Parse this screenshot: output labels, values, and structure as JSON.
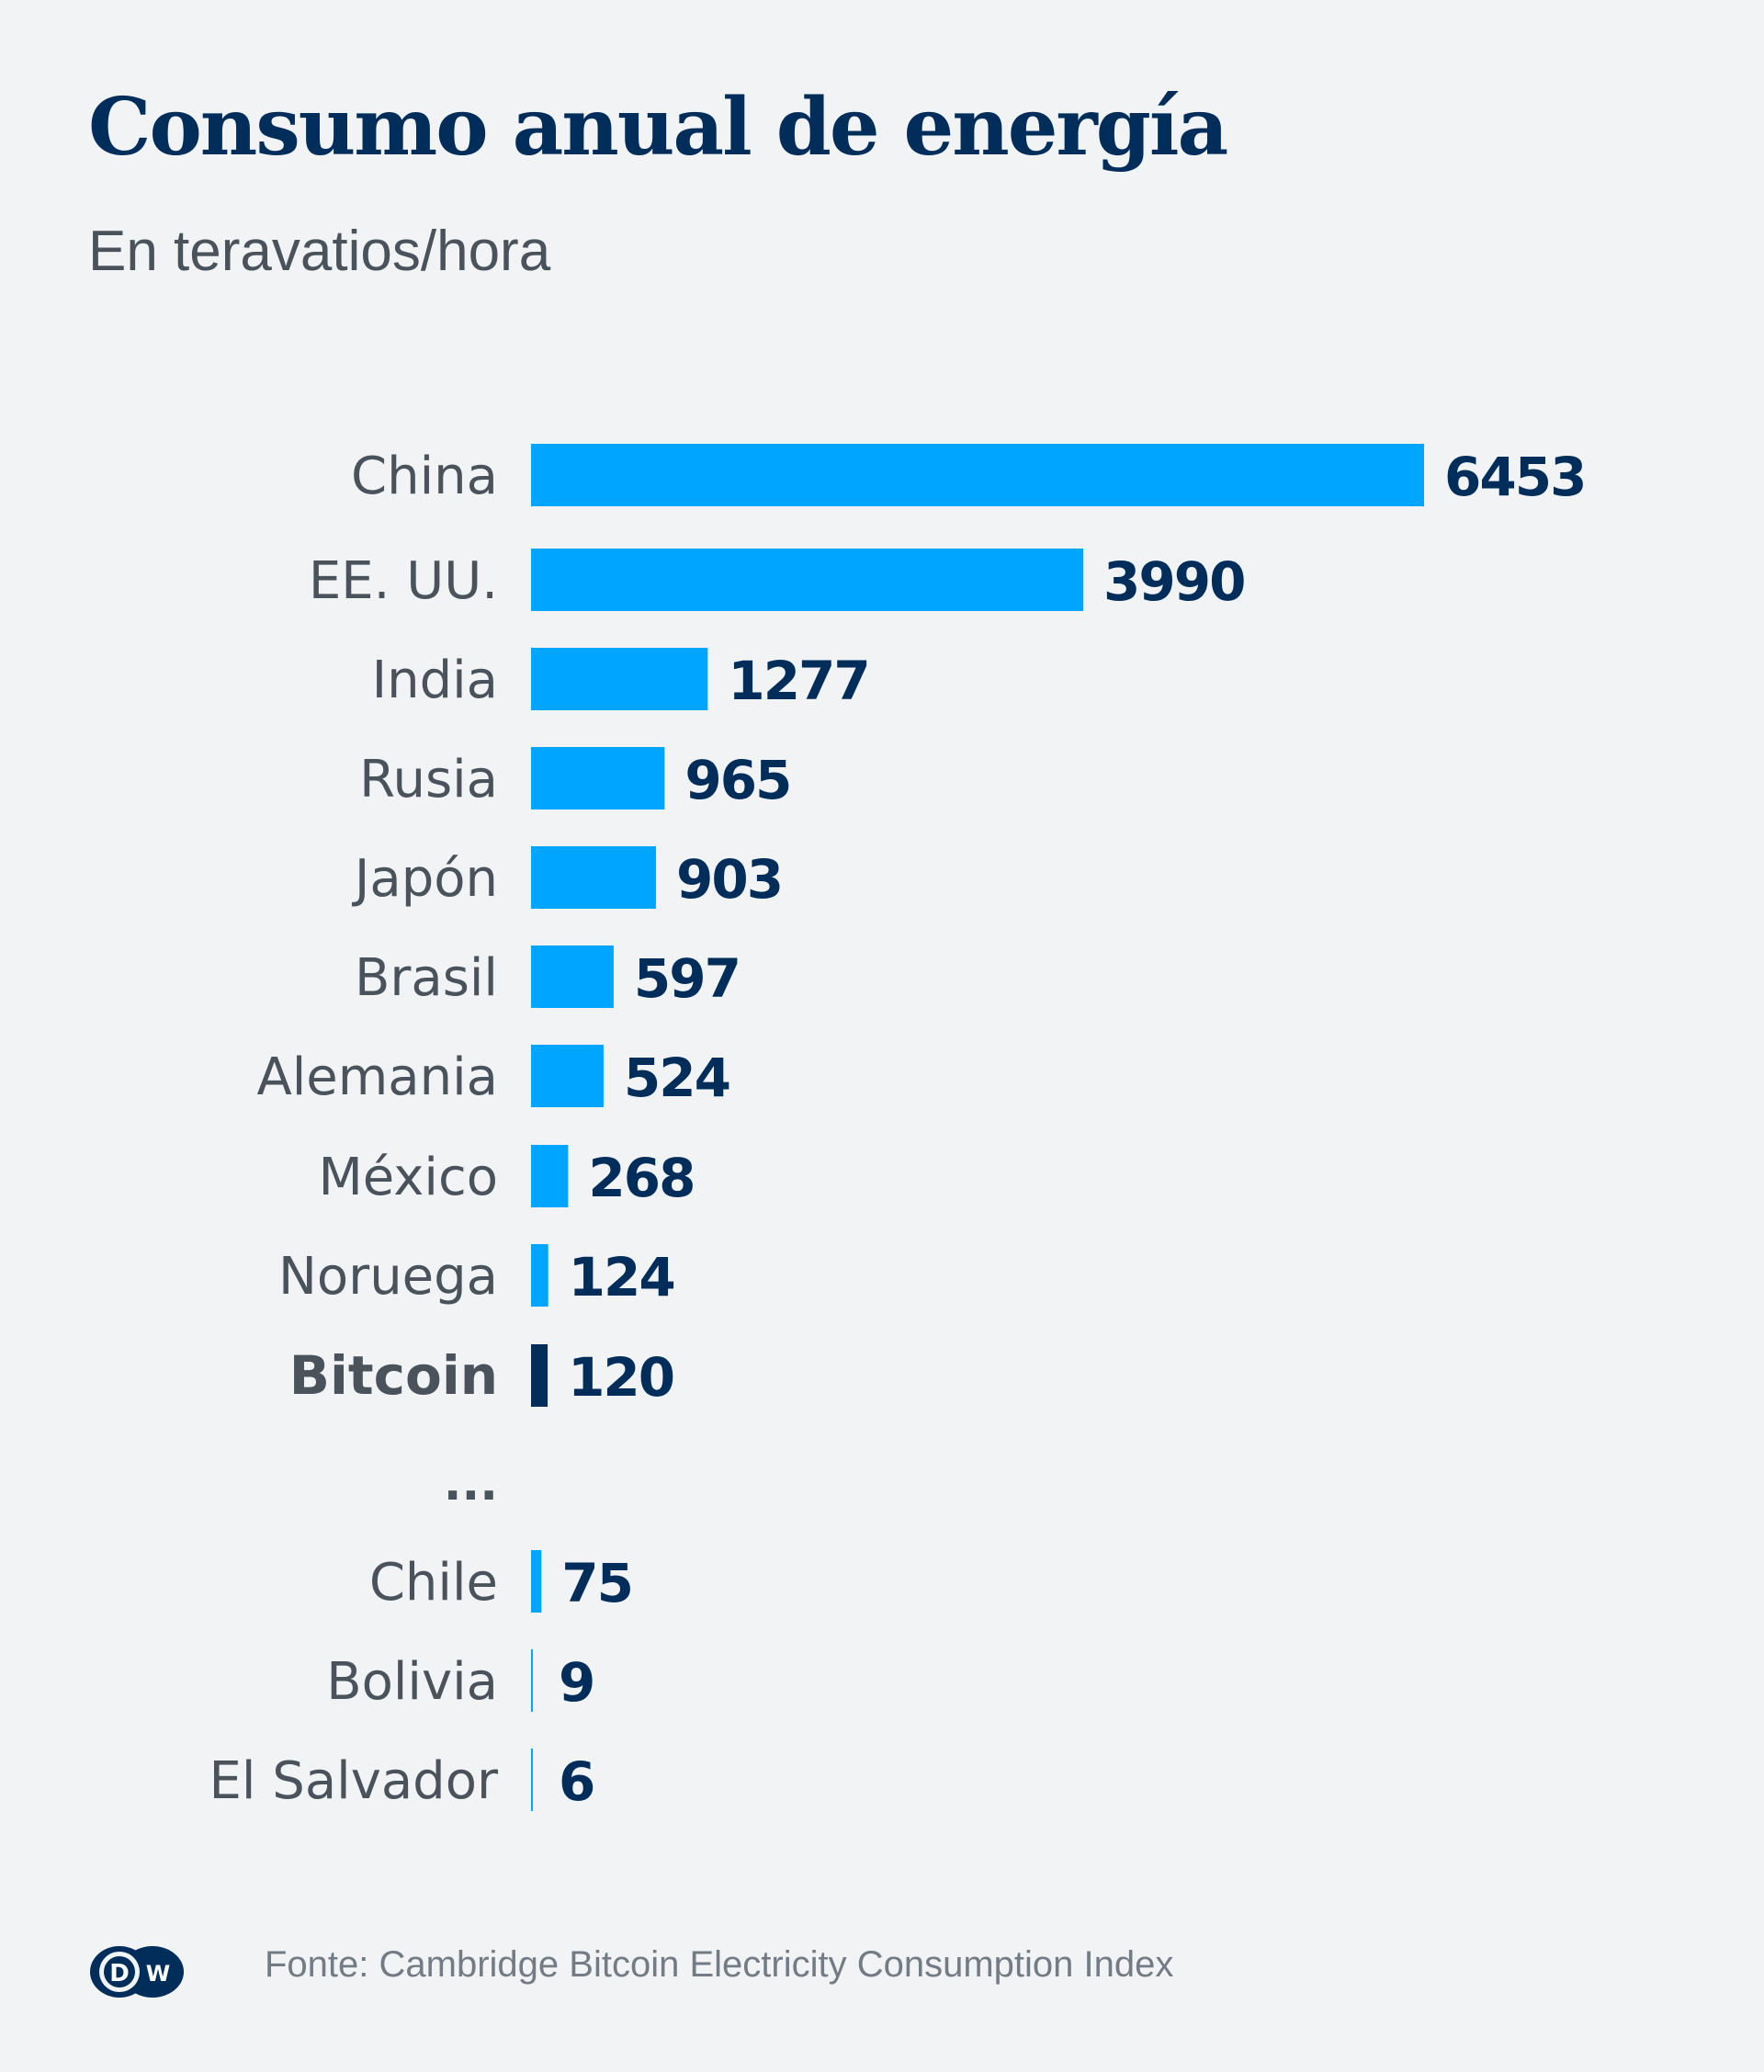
{
  "header": {
    "title": "Consumo anual de energía",
    "subtitle": "En teravatios/hora"
  },
  "footer": {
    "source": "Fonte: Cambridge Bitcoin Electricity Consumption Index",
    "logo_text_left": "D",
    "logo_text_right": "W",
    "logo_icon": "dw-logo-icon"
  },
  "colors": {
    "background": "#f1f3f5",
    "bar": "#00a5ff",
    "highlight_bar": "#002d5a",
    "value_text": "#002d5a",
    "label_text": "#4a525c",
    "source_text": "#737b85"
  },
  "chart_data": {
    "type": "bar",
    "orientation": "horizontal",
    "title": "Consumo anual de energía",
    "subtitle": "En teravatios/hora",
    "xlabel": "",
    "ylabel": "",
    "unit": "TWh",
    "grid": false,
    "legend": "none",
    "categories": [
      "China",
      "EE. UU.",
      "India",
      "Rusia",
      "Japón",
      "Brasil",
      "Alemania",
      "México",
      "Noruega",
      "Bitcoin",
      "...",
      "Chile",
      "Bolivia",
      "El Salvador"
    ],
    "values": [
      6453,
      3990,
      1277,
      965,
      903,
      597,
      524,
      268,
      124,
      120,
      null,
      75,
      9,
      6
    ],
    "highlight": [
      "Bitcoin"
    ],
    "gap_marker": "...",
    "xlim": [
      0,
      6453
    ]
  }
}
